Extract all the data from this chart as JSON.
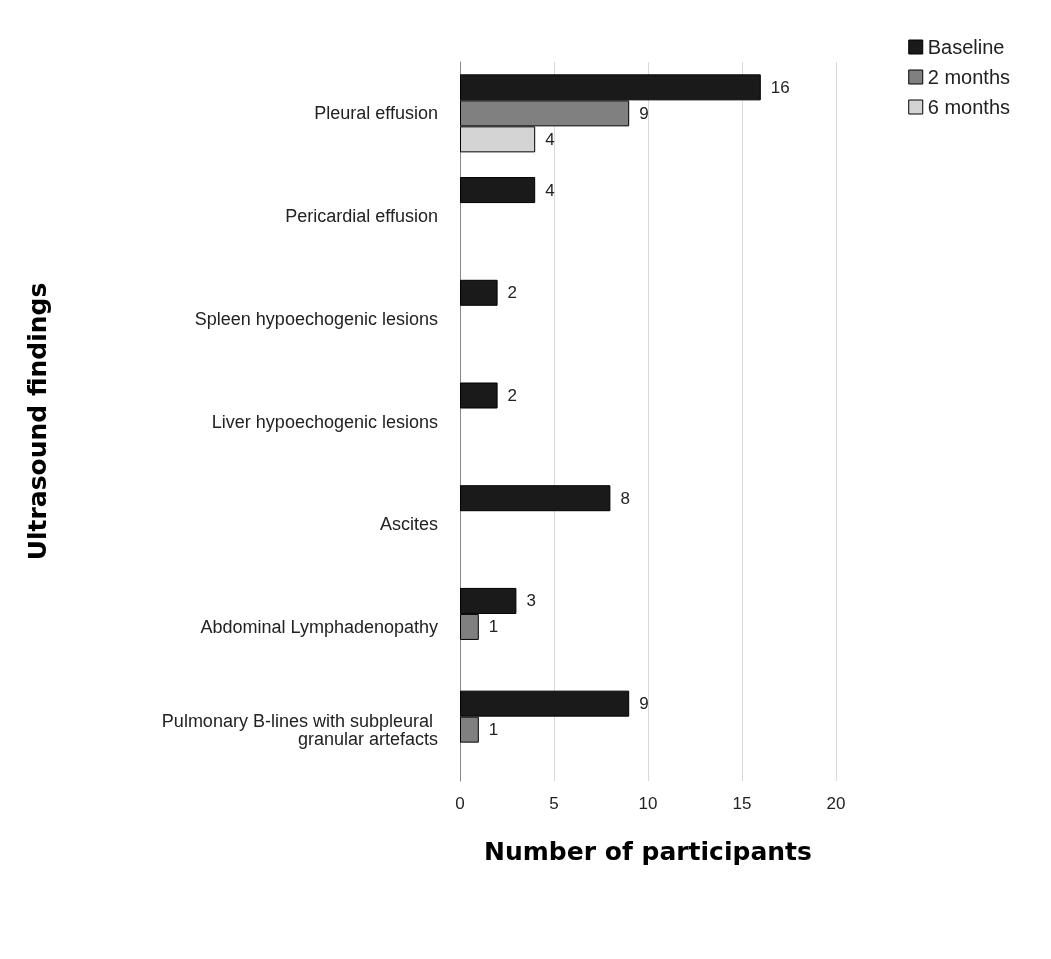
{
  "chart_data": {
    "type": "bar",
    "orientation": "horizontal",
    "xlabel": "Number of participants",
    "ylabel": "Ultrasound findings",
    "categories": [
      "Pleural effusion",
      "Pericardial effusion",
      "Spleen hypoechogenic lesions",
      "Liver hypoechogenic lesions",
      "Ascites",
      "Abdominal Lymphadenopathy",
      "Pulmonary B-lines with subpleural granular artefacts"
    ],
    "series": [
      {
        "name": "Baseline",
        "color": "#1a1a1a",
        "values": [
          16,
          4,
          2,
          2,
          8,
          3,
          9
        ]
      },
      {
        "name": "2 months",
        "color": "#808080",
        "values": [
          9,
          null,
          null,
          null,
          null,
          1,
          1
        ]
      },
      {
        "name": "6 months",
        "color": "#d4d4d4",
        "values": [
          4,
          null,
          null,
          null,
          null,
          null,
          null
        ]
      }
    ],
    "xlim": [
      0,
      20
    ],
    "xticks": [
      0,
      5,
      10,
      15,
      20
    ],
    "grid": "x",
    "legend": "top right",
    "data_labels": true
  }
}
